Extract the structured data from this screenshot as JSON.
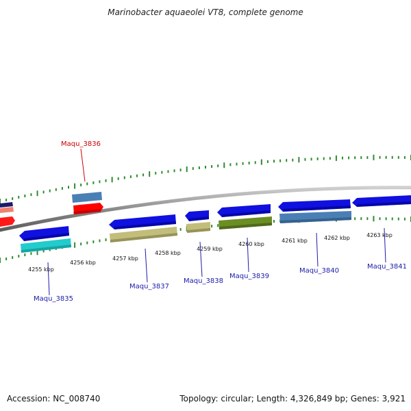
{
  "title": "Marinobacter aquaeolei VT8, complete genome",
  "footer": {
    "accession": "Accession: NC_008740",
    "summary": "Topology: circular; Length: 4,326,849 bp; Genes: 3,921"
  },
  "colors": {
    "backbone": "#8a8a8a",
    "tick": "#2e8b2e",
    "label_forward": "#cc0000",
    "label_reverse": "#1a1aaa"
  },
  "kbp_labels": [
    "4255 kbp",
    "4256 kbp",
    "4257 kbp",
    "4258 kbp",
    "4259 kbp",
    "4260 kbp",
    "4261 kbp",
    "4262 kbp",
    "4263 kbp"
  ],
  "gene_labels": [
    {
      "id": "Maqu_3835",
      "color": "#1a1aaa"
    },
    {
      "id": "Maqu_3836",
      "color": "#cc0000"
    },
    {
      "id": "Maqu_3837",
      "color": "#1a1aaa"
    },
    {
      "id": "Maqu_3838",
      "color": "#1a1aaa"
    },
    {
      "id": "Maqu_3839",
      "color": "#1a1aaa"
    },
    {
      "id": "Maqu_3840",
      "color": "#1a1aaa"
    },
    {
      "id": "Maqu_3841",
      "color": "#1a1aaa"
    }
  ]
}
